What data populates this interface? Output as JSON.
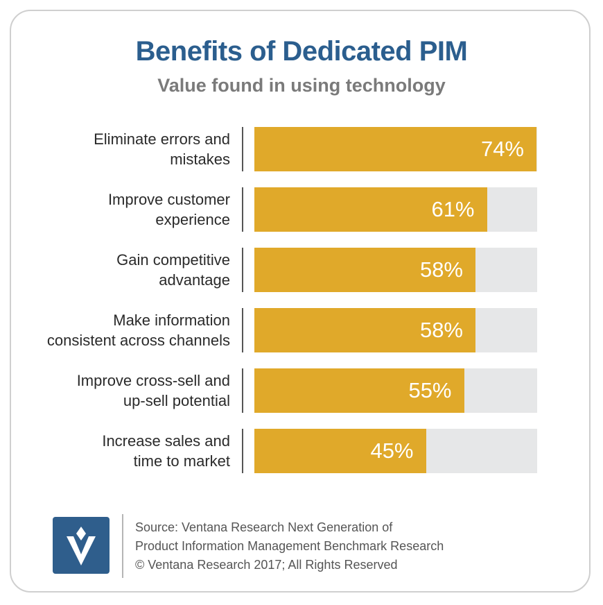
{
  "title": "Benefits of Dedicated PIM",
  "subtitle": "Value found in using technology",
  "chart_data": {
    "type": "bar",
    "orientation": "horizontal",
    "categories": [
      [
        "Eliminate errors and",
        "mistakes"
      ],
      [
        "Improve customer",
        "experience"
      ],
      [
        "Gain competitive",
        "advantage"
      ],
      [
        "Make information",
        "consistent across channels"
      ],
      [
        "Improve cross-sell and",
        "up-sell potential"
      ],
      [
        "Increase sales and",
        "time to market"
      ]
    ],
    "values": [
      74,
      61,
      58,
      58,
      55,
      45
    ],
    "value_labels": [
      "74%",
      "61%",
      "58%",
      "58%",
      "55%",
      "45%"
    ],
    "xlim": [
      0,
      100
    ],
    "grid": false,
    "legend": "none",
    "bar_color": "#e0a92a",
    "track_color": "#e6e7e8"
  },
  "footer": {
    "source_lines": [
      "Source: Ventana Research Next Generation of",
      "Product Information Management Benchmark Research",
      "© Ventana Research 2017; All Rights Reserved"
    ],
    "logo_icon": "ventana-logo-icon"
  },
  "colors": {
    "title": "#2b5e8e",
    "subtitle": "#7a7a7a",
    "logo_bg": "#2f5e8c"
  }
}
